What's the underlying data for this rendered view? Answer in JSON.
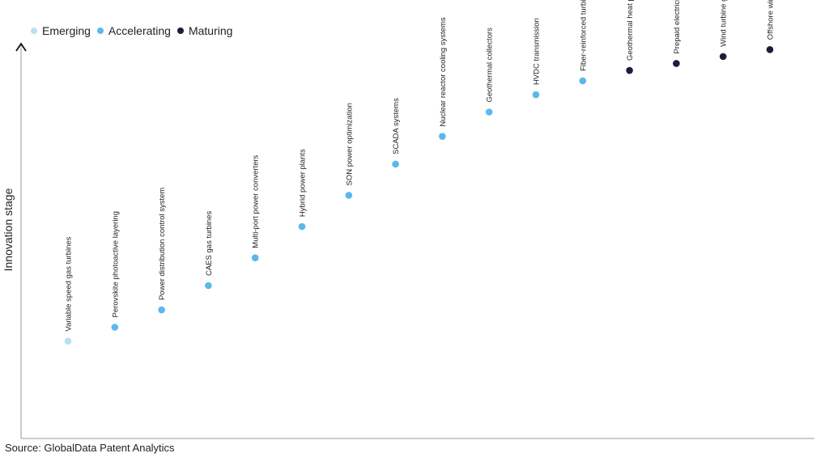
{
  "chart_data": {
    "type": "scatter",
    "title": "",
    "xlabel": "",
    "ylabel": "Innovation stage",
    "ylim": [
      0,
      100
    ],
    "legend_position": "top-left",
    "grid": false,
    "series": [
      {
        "name": "Emerging",
        "color": "#b8e0f5"
      },
      {
        "name": "Accelerating",
        "color": "#5bb8ec"
      },
      {
        "name": "Maturing",
        "color": "#1c1c3c"
      }
    ],
    "points": [
      {
        "label": "Variable speed gas turbines",
        "stage": "Emerging",
        "y": 15
      },
      {
        "label": "Perovskite photoactive layering",
        "stage": "Accelerating",
        "y": 19
      },
      {
        "label": "Power distribution control system",
        "stage": "Accelerating",
        "y": 24
      },
      {
        "label": "CAES gas turbines",
        "stage": "Accelerating",
        "y": 31
      },
      {
        "label": "Multi-port power converters",
        "stage": "Accelerating",
        "y": 39
      },
      {
        "label": "Hybrid power plants",
        "stage": "Accelerating",
        "y": 48
      },
      {
        "label": "SON power optimization",
        "stage": "Accelerating",
        "y": 57
      },
      {
        "label": "SCADA systems",
        "stage": "Accelerating",
        "y": 66
      },
      {
        "label": "Nuclear reactor cooling systems",
        "stage": "Accelerating",
        "y": 74
      },
      {
        "label": "Geothermal collectors",
        "stage": "Accelerating",
        "y": 81
      },
      {
        "label": "HVDC transmission",
        "stage": "Accelerating",
        "y": 86
      },
      {
        "label": "Fiber-reinforced turbine blades",
        "stage": "Accelerating",
        "y": 90
      },
      {
        "label": "Geothermal heat pumps",
        "stage": "Maturing",
        "y": 93
      },
      {
        "label": "Prepaid electricity metering",
        "stage": "Maturing",
        "y": 95
      },
      {
        "label": "Wind turbine gearbox",
        "stage": "Maturing",
        "y": 97
      },
      {
        "label": "Offshore wind turbine pre-assembly",
        "stage": "Maturing",
        "y": 99
      }
    ]
  },
  "source": "Source: GlobalData Patent Analytics"
}
